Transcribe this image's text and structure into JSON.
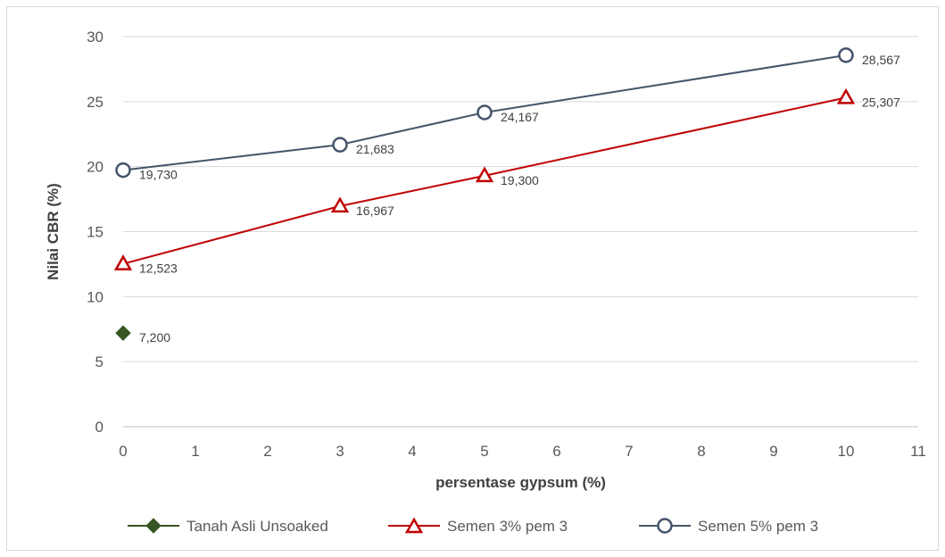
{
  "chart_data": {
    "type": "scatter",
    "xlabel": "persentase gypsum (%)",
    "ylabel": "Nilai CBR (%)",
    "xlim": [
      0,
      11
    ],
    "ylim": [
      0,
      30
    ],
    "x_ticks": [
      "0",
      "1",
      "2",
      "3",
      "4",
      "5",
      "6",
      "7",
      "8",
      "9",
      "10",
      "11"
    ],
    "y_ticks": [
      "0",
      "5",
      "10",
      "15",
      "20",
      "25",
      "30"
    ],
    "grid": "horizontal",
    "legend_position": "bottom",
    "series": [
      {
        "name": "Tanah Asli Unsoaked",
        "color": "#375623",
        "marker": "diamond",
        "line": false,
        "points": [
          {
            "x": 0,
            "y": 7.2,
            "label": "7,200"
          }
        ]
      },
      {
        "name": "Semen 3% pem 3",
        "color": "#c00000",
        "marker": "triangle",
        "line": true,
        "points": [
          {
            "x": 0,
            "y": 12.523,
            "label": "12,523"
          },
          {
            "x": 3,
            "y": 16.967,
            "label": "16,967"
          },
          {
            "x": 5,
            "y": 19.3,
            "label": "19,300"
          },
          {
            "x": 10,
            "y": 25.307,
            "label": "25,307"
          }
        ]
      },
      {
        "name": "Semen 5% pem 3",
        "color": "#44546a",
        "marker": "circle",
        "line": true,
        "points": [
          {
            "x": 0,
            "y": 19.73,
            "label": "19,730"
          },
          {
            "x": 3,
            "y": 21.683,
            "label": "21,683"
          },
          {
            "x": 5,
            "y": 24.167,
            "label": "24,167"
          },
          {
            "x": 10,
            "y": 28.567,
            "label": "28,567"
          }
        ]
      }
    ]
  }
}
